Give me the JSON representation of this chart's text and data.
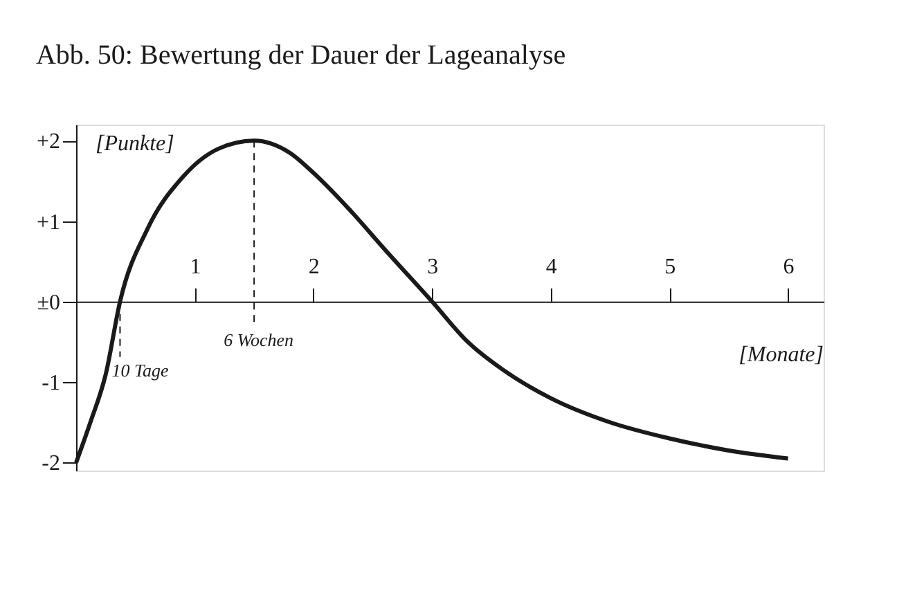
{
  "chart_data": {
    "type": "line",
    "title": "Abb. 50:    Bewertung der Dauer der Lageanalyse",
    "xlabel": "[Monate]",
    "ylabel": "[Punkte]",
    "x": [
      0,
      0.12,
      0.25,
      0.37,
      0.6,
      0.9,
      1.2,
      1.5,
      1.8,
      2.0,
      2.3,
      2.6,
      3.0,
      3.3,
      3.6,
      4.0,
      4.5,
      5.0,
      5.5,
      6.0
    ],
    "series": [
      {
        "color": "#1a1a1a",
        "values": [
          -2,
          -1.5,
          -0.9,
          0,
          0.9,
          1.55,
          1.9,
          2,
          1.85,
          1.6,
          1.15,
          0.65,
          0,
          -0.5,
          -0.85,
          -1.2,
          -1.5,
          -1.7,
          -1.85,
          -1.95
        ]
      }
    ],
    "xlim": [
      0,
      6.3
    ],
    "ylim": [
      -2.1,
      2.2
    ],
    "xticks": [
      1,
      2,
      3,
      4,
      5,
      6
    ],
    "yticks": [
      {
        "value": 2,
        "label": "+2"
      },
      {
        "value": 1,
        "label": "+1"
      },
      {
        "value": 0,
        "label": "±0"
      },
      {
        "value": -1,
        "label": "-1"
      },
      {
        "value": -2,
        "label": "-2"
      }
    ],
    "annotations": [
      {
        "text": "10 Tage",
        "x": 0.37,
        "y": 0
      },
      {
        "text": "6 Wochen",
        "x": 1.5,
        "y": 2
      }
    ],
    "grid": false,
    "marker": "none",
    "line_style": "solid"
  }
}
